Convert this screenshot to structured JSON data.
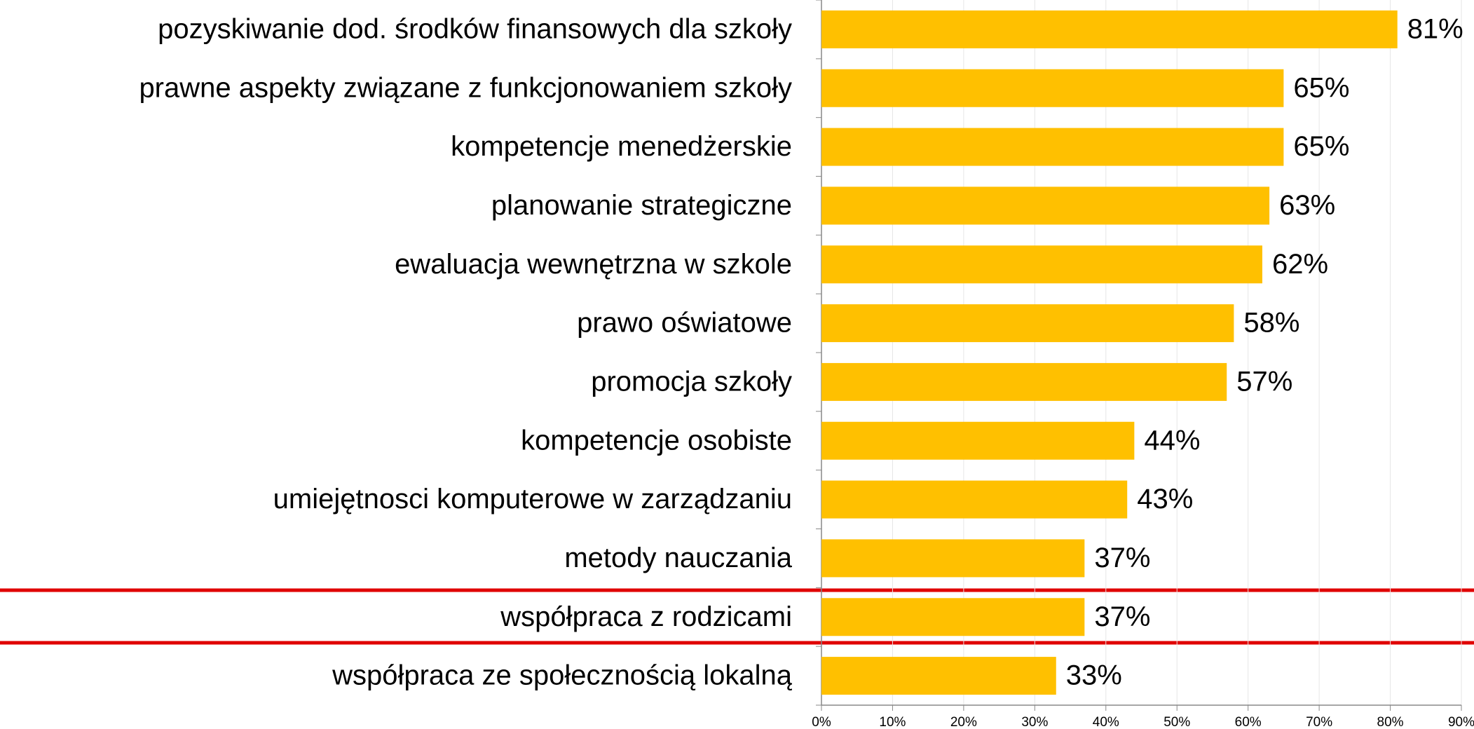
{
  "chart_data": {
    "type": "bar",
    "orientation": "horizontal",
    "categories": [
      "pozyskiwanie dod. środków finansowych dla szkoły",
      "prawne aspekty związane z funkcjonowaniem szkoły",
      "kompetencje menedżerskie",
      "planowanie strategiczne",
      "ewaluacja wewnętrzna w szkole",
      "prawo oświatowe",
      "promocja szkoły",
      "kompetencje osobiste",
      "umiejętnosci komputerowe w zarządzaniu",
      "metody nauczania",
      "współpraca z rodzicami",
      "współpraca ze społecznością lokalną"
    ],
    "values": [
      81,
      65,
      65,
      63,
      62,
      58,
      57,
      44,
      43,
      37,
      37,
      33
    ],
    "value_labels": [
      "81%",
      "65%",
      "65%",
      "63%",
      "62%",
      "58%",
      "57%",
      "44%",
      "43%",
      "37%",
      "37%",
      "33%"
    ],
    "color": "#ffc000",
    "xlim": [
      0,
      90
    ],
    "xticks": [
      {
        "value": 0,
        "label": "0%"
      },
      {
        "value": 10,
        "label": "10%"
      },
      {
        "value": 20,
        "label": "20%"
      },
      {
        "value": 30,
        "label": "30%"
      },
      {
        "value": 40,
        "label": "40%"
      },
      {
        "value": 50,
        "label": "50%"
      },
      {
        "value": 60,
        "label": "60%"
      },
      {
        "value": 70,
        "label": "70%"
      },
      {
        "value": 80,
        "label": "80%"
      },
      {
        "value": 90,
        "label": "90%"
      }
    ],
    "grid": true
  }
}
